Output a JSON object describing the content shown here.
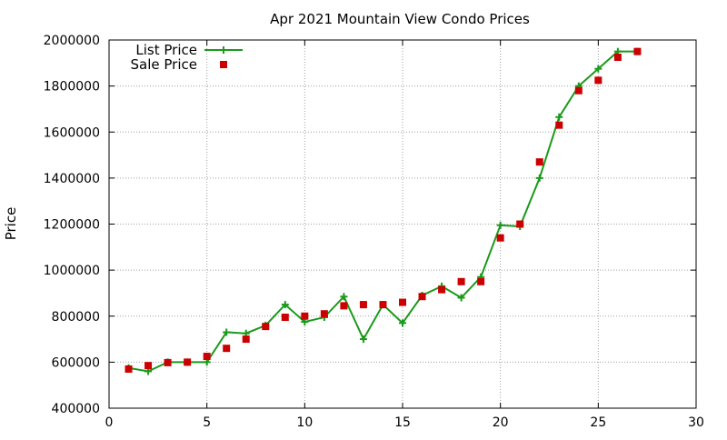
{
  "chart_data": {
    "type": "line",
    "title": "Apr 2021 Mountain View Condo Prices",
    "xlabel": "",
    "ylabel": "Price",
    "xlim": [
      0,
      30
    ],
    "ylim": [
      400000,
      2000000
    ],
    "xticks": [
      0,
      5,
      10,
      15,
      20,
      25,
      30
    ],
    "yticks": [
      400000,
      600000,
      800000,
      1000000,
      1200000,
      1400000,
      1600000,
      1800000,
      2000000
    ],
    "grid": true,
    "legend_position": "top-left",
    "series": [
      {
        "name": "List Price",
        "kind": "line-points",
        "color": "#1a9a1a",
        "marker": "plus",
        "x": [
          1,
          2,
          3,
          4,
          5,
          6,
          7,
          8,
          9,
          10,
          11,
          12,
          13,
          14,
          15,
          16,
          17,
          18,
          19,
          20,
          21,
          22,
          23,
          24,
          25,
          26,
          27
        ],
        "y": [
          575000,
          560000,
          600000,
          600000,
          600000,
          730000,
          725000,
          760000,
          850000,
          775000,
          795000,
          885000,
          700000,
          850000,
          770000,
          890000,
          930000,
          880000,
          970000,
          1195000,
          1190000,
          1400000,
          1665000,
          1800000,
          1875000,
          1950000,
          1950000
        ]
      },
      {
        "name": "Sale Price",
        "kind": "points",
        "color": "#cc0000",
        "marker": "square",
        "x": [
          1,
          2,
          3,
          4,
          5,
          6,
          7,
          8,
          9,
          10,
          11,
          12,
          13,
          14,
          15,
          16,
          17,
          18,
          19,
          20,
          21,
          22,
          23,
          24,
          25,
          26,
          27
        ],
        "y": [
          570000,
          585000,
          598000,
          600000,
          625000,
          660000,
          700000,
          755000,
          795000,
          800000,
          810000,
          845000,
          850000,
          850000,
          860000,
          885000,
          915000,
          950000,
          950000,
          1140000,
          1200000,
          1470000,
          1630000,
          1780000,
          1825000,
          1925000,
          1950000
        ]
      }
    ]
  },
  "colors": {
    "grid": "#a0a0a0",
    "axis": "#000000",
    "background": "#ffffff"
  }
}
